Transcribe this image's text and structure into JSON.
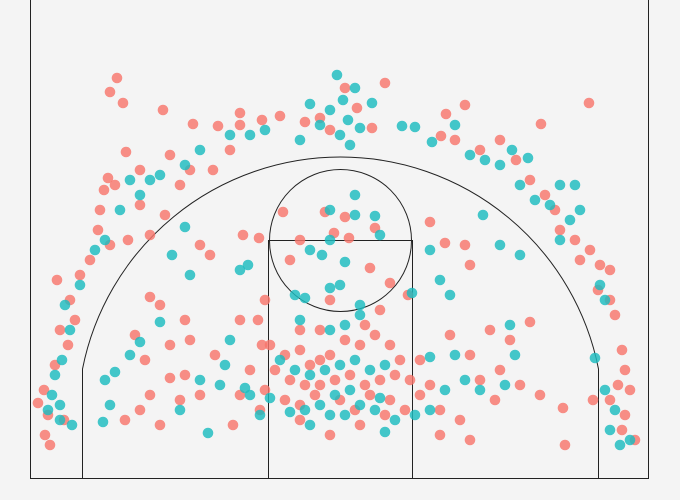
{
  "chart_data": {
    "type": "scatter",
    "xlim": [
      30,
      648
    ],
    "ylim": [
      0,
      478
    ],
    "series": [
      {
        "color": "#f8766d",
        "x": [
          117,
          110,
          123,
          163,
          193,
          218,
          240,
          240,
          262,
          280,
          305,
          320,
          330,
          372,
          385,
          345,
          357,
          446,
          465,
          441,
          455,
          480,
          500,
          541,
          589,
          126,
          108,
          104,
          115,
          140,
          170,
          190,
          180,
          213,
          230,
          100,
          98,
          110,
          128,
          90,
          80,
          57,
          70,
          75,
          60,
          68,
          55,
          44,
          38,
          48,
          45,
          50,
          64,
          140,
          165,
          150,
          516,
          530,
          545,
          555,
          560,
          575,
          590,
          600,
          610,
          580,
          598,
          610,
          615,
          622,
          625,
          618,
          630,
          610,
          625,
          635,
          622,
          565,
          563,
          593,
          200,
          210,
          243,
          259,
          290,
          300,
          334,
          349,
          375,
          370,
          390,
          408,
          445,
          465,
          470,
          430,
          283,
          345,
          325,
          150,
          160,
          185,
          240,
          258,
          135,
          170,
          190,
          215,
          145,
          185,
          170,
          200,
          150,
          140,
          125,
          160,
          180,
          490,
          510,
          530,
          500,
          520,
          540,
          450,
          470,
          430,
          420,
          440,
          460,
          470,
          440,
          495,
          480,
          270,
          285,
          300,
          310,
          320,
          330,
          345,
          360,
          375,
          390,
          400,
          395,
          380,
          365,
          350,
          335,
          320,
          305,
          290,
          275,
          265,
          285,
          300,
          315,
          340,
          355,
          370,
          390,
          405,
          300,
          330,
          360,
          385,
          250,
          260,
          410,
          420,
          240,
          233,
          262,
          320,
          365,
          380,
          265,
          330,
          300
        ],
        "y": [
          400,
          386,
          375,
          368,
          354,
          352,
          365,
          353,
          358,
          362,
          356,
          360,
          348,
          350,
          395,
          390,
          370,
          364,
          373,
          342,
          338,
          328,
          338,
          354,
          375,
          326,
          300,
          288,
          293,
          308,
          323,
          308,
          293,
          308,
          328,
          268,
          248,
          233,
          238,
          218,
          203,
          198,
          178,
          158,
          148,
          133,
          113,
          88,
          75,
          63,
          43,
          33,
          58,
          273,
          263,
          243,
          318,
          298,
          283,
          268,
          248,
          238,
          228,
          213,
          208,
          218,
          188,
          178,
          163,
          128,
          108,
          93,
          88,
          78,
          63,
          38,
          48,
          33,
          70,
          78,
          233,
          223,
          243,
          240,
          218,
          238,
          245,
          240,
          250,
          210,
          195,
          183,
          235,
          233,
          213,
          256,
          266,
          261,
          266,
          181,
          173,
          158,
          158,
          158,
          143,
          133,
          138,
          123,
          118,
          103,
          100,
          83,
          83,
          68,
          58,
          53,
          78,
          148,
          138,
          156,
          108,
          93,
          83,
          143,
          123,
          93,
          83,
          68,
          58,
          38,
          43,
          78,
          98,
          133,
          123,
          128,
          113,
          118,
          123,
          138,
          133,
          143,
          133,
          118,
          103,
          98,
          93,
          103,
          98,
          93,
          93,
          98,
          108,
          88,
          78,
          73,
          83,
          78,
          68,
          83,
          78,
          68,
          58,
          43,
          53,
          63,
          108,
          68,
          98,
          118,
          83,
          53,
          133,
          148,
          153,
          168,
          178,
          178,
          148
        ]
      },
      {
        "color": "#1cbcbf",
        "x": [
          337,
          355,
          343,
          310,
          330,
          372,
          348,
          360,
          320,
          340,
          350,
          300,
          265,
          250,
          230,
          200,
          185,
          160,
          150,
          130,
          140,
          120,
          105,
          95,
          80,
          65,
          70,
          62,
          55,
          52,
          60,
          48,
          60,
          72,
          402,
          415,
          432,
          455,
          470,
          485,
          500,
          512,
          528,
          520,
          535,
          550,
          560,
          575,
          570,
          580,
          560,
          600,
          605,
          595,
          605,
          615,
          610,
          630,
          620,
          355,
          330,
          355,
          375,
          380,
          330,
          310,
          322,
          345,
          340,
          330,
          295,
          305,
          360,
          412,
          440,
          450,
          430,
          483,
          500,
          520,
          185,
          172,
          190,
          240,
          248,
          160,
          140,
          130,
          105,
          115,
          110,
          103,
          180,
          208,
          200,
          220,
          230,
          225,
          455,
          465,
          480,
          505,
          510,
          515,
          430,
          445,
          430,
          415,
          280,
          295,
          310,
          325,
          340,
          355,
          370,
          385,
          350,
          335,
          320,
          305,
          290,
          345,
          360,
          375,
          395,
          310,
          330,
          260,
          270,
          385,
          380,
          250,
          245,
          330,
          345,
          360,
          300
        ],
        "y": [
          403,
          390,
          378,
          374,
          368,
          375,
          358,
          350,
          353,
          343,
          333,
          338,
          348,
          343,
          343,
          328,
          313,
          303,
          298,
          298,
          283,
          268,
          238,
          228,
          193,
          173,
          148,
          118,
          103,
          83,
          73,
          68,
          58,
          53,
          352,
          351,
          336,
          353,
          323,
          318,
          313,
          328,
          320,
          293,
          278,
          273,
          293,
          293,
          258,
          268,
          238,
          193,
          178,
          120,
          88,
          68,
          48,
          38,
          33,
          283,
          268,
          263,
          262,
          243,
          238,
          228,
          223,
          216,
          193,
          190,
          183,
          180,
          173,
          185,
          198,
          183,
          228,
          263,
          233,
          223,
          251,
          223,
          203,
          208,
          213,
          156,
          136,
          123,
          98,
          106,
          73,
          56,
          68,
          45,
          98,
          93,
          138,
          113,
          123,
          98,
          88,
          93,
          153,
          123,
          121,
          88,
          68,
          63,
          118,
          108,
          103,
          108,
          113,
          118,
          108,
          113,
          88,
          83,
          73,
          68,
          66,
          63,
          73,
          68,
          58,
          53,
          63,
          63,
          80,
          46,
          80,
          83,
          90,
          148,
          153,
          163,
          158
        ]
      }
    ]
  }
}
